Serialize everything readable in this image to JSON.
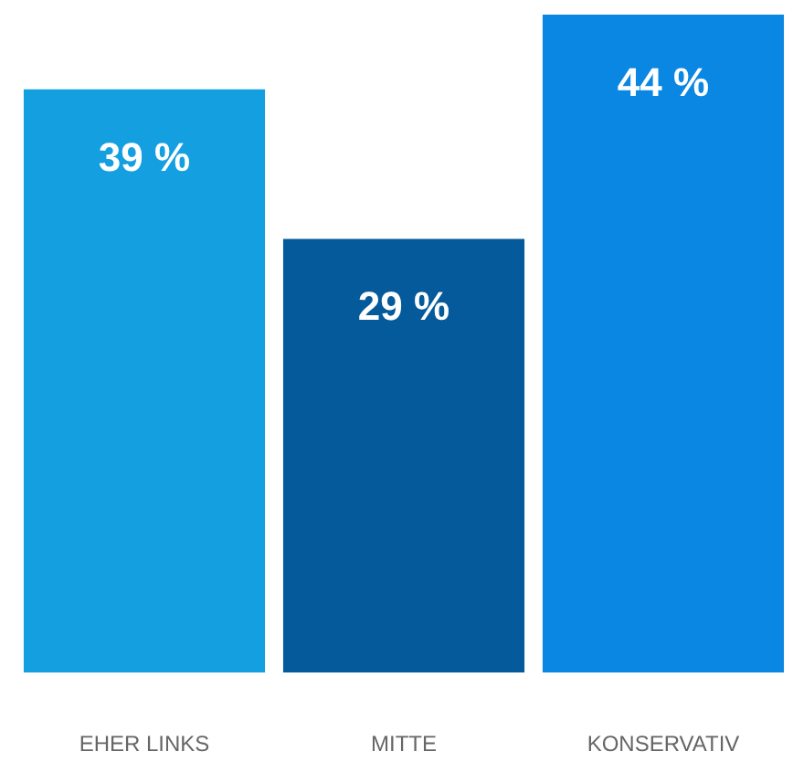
{
  "chart_data": {
    "type": "bar",
    "categories": [
      "EHER LINKS",
      "MITTE",
      "KONSERVATIV"
    ],
    "values": [
      39,
      29,
      44
    ],
    "colors": [
      "#139fe0",
      "#045a9a",
      "#0a87e3"
    ],
    "value_labels": [
      "39 %",
      "29 %",
      "44 %"
    ]
  }
}
